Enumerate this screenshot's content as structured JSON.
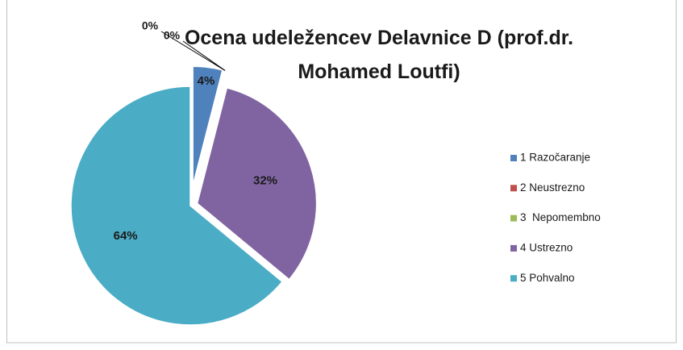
{
  "chart_data": {
    "type": "pie",
    "title": "Ocena udeležencev Delavnice D (prof.dr. Mohamed Loutfi)",
    "categories": [
      "1 Razočaranje",
      "2 Neustrezno",
      "3  Nepomembno",
      "4 Ustrezno",
      "5 Pohvalno"
    ],
    "values": [
      4,
      0,
      0,
      32,
      64
    ],
    "value_labels": [
      "4%",
      "0%",
      "0%",
      "32%",
      "64%"
    ],
    "colors": [
      "#4f81bd",
      "#c0504d",
      "#9bbb59",
      "#8064a2",
      "#4bacc6"
    ],
    "legend": "right"
  }
}
